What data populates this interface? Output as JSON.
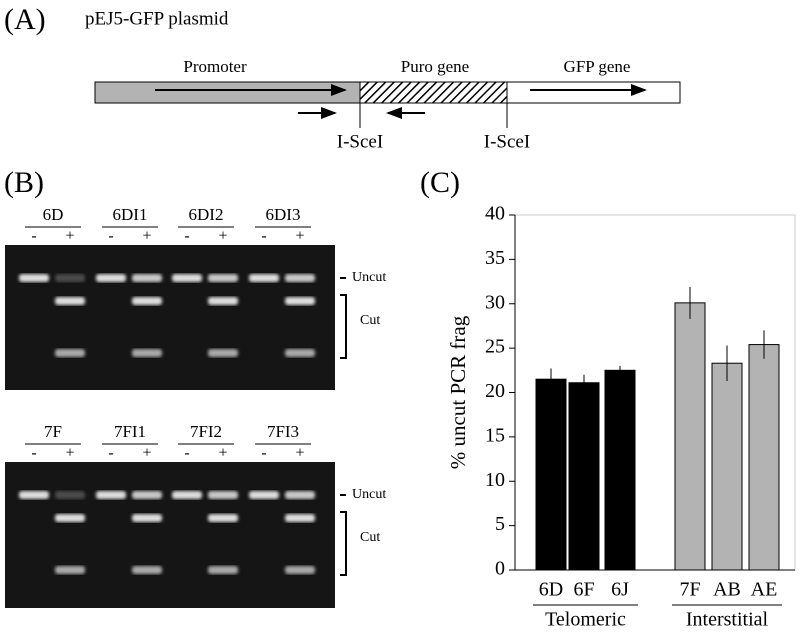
{
  "panel_a": {
    "label": "(A)",
    "title": "pEJ5-GFP plasmid",
    "segments": [
      "Promoter",
      "Puro gene",
      "GFP gene"
    ],
    "sites": [
      "I-SceI",
      "I-SceI"
    ]
  },
  "panel_b": {
    "label": "(B)",
    "lanes": [
      "-",
      "+"
    ],
    "uncut": "Uncut",
    "cut": "Cut",
    "gels": [
      {
        "samples": [
          "6D",
          "6DI1",
          "6DI2",
          "6DI3"
        ]
      },
      {
        "samples": [
          "7F",
          "7FI1",
          "7FI2",
          "7FI3"
        ]
      }
    ]
  },
  "chart_data": {
    "type": "bar",
    "label": "(C)",
    "ylabel": "% uncut PCR frag",
    "categories": [
      "6D",
      "6F",
      "6J",
      "7F",
      "AB",
      "AE"
    ],
    "values": [
      21.5,
      21.1,
      22.5,
      30.1,
      23.3,
      25.4
    ],
    "errors": [
      1.2,
      0.9,
      0.5,
      1.8,
      2.0,
      1.6
    ],
    "colors": [
      "#000000",
      "#000000",
      "#000000",
      "#b3b3b3",
      "#b3b3b3",
      "#b3b3b3"
    ],
    "groups": [
      "Telomeric",
      "Interstitial"
    ],
    "ylim": [
      0,
      40
    ],
    "yticks": [
      0,
      5,
      10,
      15,
      20,
      25,
      30,
      35,
      40
    ]
  }
}
